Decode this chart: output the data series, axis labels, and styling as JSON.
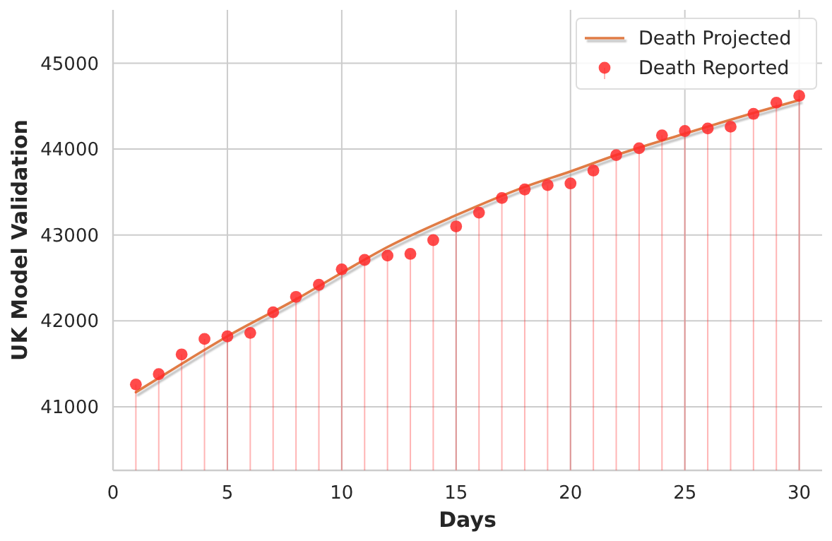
{
  "chart_data": {
    "type": "line",
    "xlabel": "Days",
    "ylabel": "UK Model Validation",
    "xlim": [
      0,
      31
    ],
    "ylim": [
      40260,
      45620
    ],
    "xticks": [
      0,
      5,
      10,
      15,
      20,
      25,
      30
    ],
    "yticks": [
      41000,
      42000,
      43000,
      44000,
      45000
    ],
    "grid": true,
    "legend": "top right",
    "series": [
      {
        "name": "Death Projected",
        "color": "#e07b45",
        "x": [
          1,
          3,
          5,
          8,
          10,
          12,
          15,
          18,
          20,
          22,
          25,
          28,
          30
        ],
        "values": [
          41170,
          41500,
          41820,
          42250,
          42560,
          42860,
          43230,
          43560,
          43740,
          43930,
          44180,
          44420,
          44570
        ]
      },
      {
        "name": "Death Reported",
        "type": "lollipop",
        "color": "#ff2a2a",
        "marker": "circle",
        "x": [
          1,
          2,
          3,
          4,
          5,
          6,
          7,
          8,
          9,
          10,
          11,
          12,
          13,
          14,
          15,
          16,
          17,
          18,
          19,
          20,
          21,
          22,
          23,
          24,
          25,
          26,
          27,
          28,
          29,
          30
        ],
        "values": [
          41260,
          41380,
          41610,
          41790,
          41820,
          41860,
          42100,
          42280,
          42420,
          42600,
          42710,
          42760,
          42780,
          42940,
          43100,
          43260,
          43430,
          43530,
          43580,
          43600,
          43750,
          43930,
          44010,
          44160,
          44210,
          44240,
          44260,
          44410,
          44540,
          44620
        ]
      }
    ]
  }
}
